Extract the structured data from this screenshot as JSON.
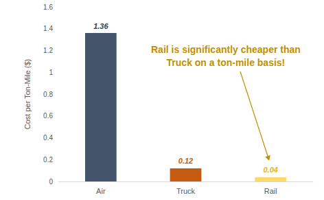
{
  "chart_data": {
    "type": "bar",
    "categories": [
      "Air",
      "Truck",
      "Rail"
    ],
    "values": [
      1.36,
      0.12,
      0.04
    ],
    "colors": [
      "#44546a",
      "#c55a11",
      "#ffd966"
    ],
    "ylabel": "Cost per Ton-Mile ($)",
    "ylim": [
      0,
      1.6
    ],
    "yticks": [
      0,
      0.2,
      0.4,
      0.6,
      0.8,
      1,
      1.2,
      1.4,
      1.6
    ],
    "grid": false,
    "data_labels": true,
    "annotation": "Rail is significantly cheaper than\nTruck on a ton-mile basis!"
  }
}
